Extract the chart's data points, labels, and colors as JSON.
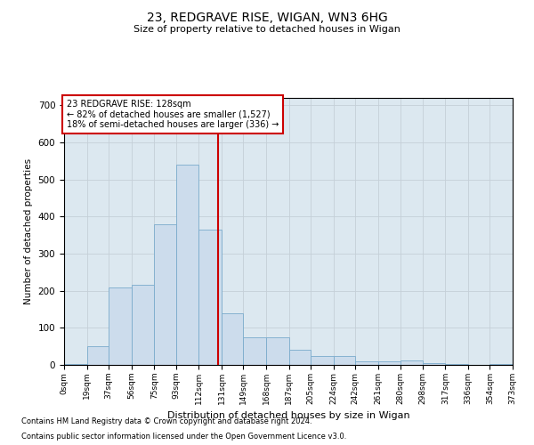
{
  "title1": "23, REDGRAVE RISE, WIGAN, WN3 6HG",
  "title2": "Size of property relative to detached houses in Wigan",
  "xlabel": "Distribution of detached houses by size in Wigan",
  "ylabel": "Number of detached properties",
  "footnote1": "Contains HM Land Registry data © Crown copyright and database right 2024.",
  "footnote2": "Contains public sector information licensed under the Open Government Licence v3.0.",
  "annotation_line1": "23 REDGRAVE RISE: 128sqm",
  "annotation_line2": "← 82% of detached houses are smaller (1,527)",
  "annotation_line3": "18% of semi-detached houses are larger (336) →",
  "property_size": 128,
  "bin_edges": [
    0,
    19,
    37,
    56,
    75,
    93,
    112,
    131,
    149,
    168,
    187,
    205,
    224,
    242,
    261,
    280,
    298,
    317,
    336,
    354,
    373
  ],
  "bin_labels": [
    "0sqm",
    "19sqm",
    "37sqm",
    "56sqm",
    "75sqm",
    "93sqm",
    "112sqm",
    "131sqm",
    "149sqm",
    "168sqm",
    "187sqm",
    "205sqm",
    "224sqm",
    "242sqm",
    "261sqm",
    "280sqm",
    "298sqm",
    "317sqm",
    "336sqm",
    "354sqm",
    "373sqm"
  ],
  "counts": [
    2,
    50,
    210,
    215,
    380,
    540,
    365,
    140,
    75,
    75,
    40,
    25,
    25,
    10,
    10,
    12,
    5,
    2,
    0,
    2
  ],
  "bar_color": "#ccdcec",
  "bar_edge_color": "#7aabcc",
  "vline_color": "#cc0000",
  "grid_color": "#c5cfd8",
  "background_color": "#dce8f0",
  "ylim": [
    0,
    720
  ],
  "yticks": [
    0,
    100,
    200,
    300,
    400,
    500,
    600,
    700
  ]
}
